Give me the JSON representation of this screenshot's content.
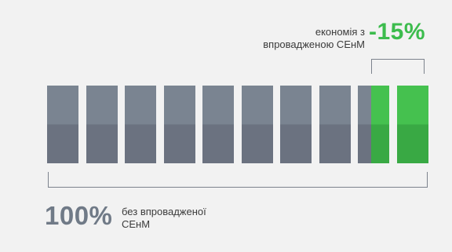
{
  "savings": {
    "label_line1": "економія з",
    "label_line2": "впровадженою СЕнМ",
    "value": "-15%"
  },
  "total": {
    "value": "100%",
    "label_line1": "без впровадженої",
    "label_line2": "СЕнМ"
  },
  "bars": {
    "count": 10,
    "green_share": 0.15,
    "colors": {
      "grey_top": "#7a8491",
      "grey_bottom": "#6b7280",
      "green_top": "#45c14f",
      "green_bottom": "#39a944",
      "accent_text": "#3cbc4d"
    }
  }
}
